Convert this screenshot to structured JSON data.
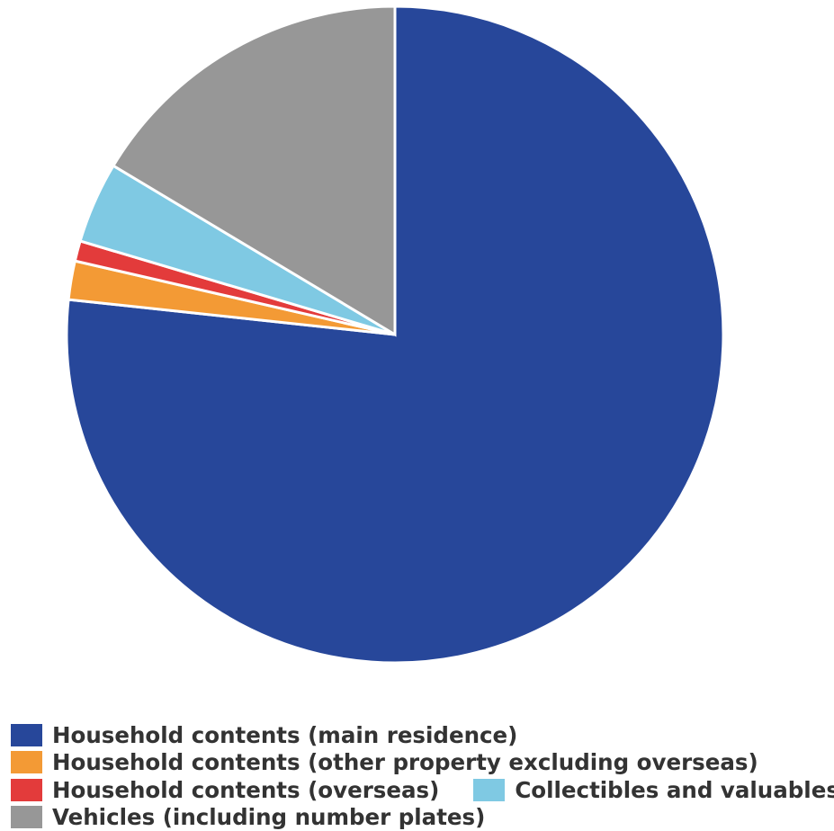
{
  "chart_data": {
    "type": "pie",
    "title": "",
    "start_angle_deg": 0,
    "direction": "clockwise",
    "series": [
      {
        "name": "Household contents (main residence)",
        "value": 76.7,
        "color": "#27479a"
      },
      {
        "name": "Household contents (other property excluding overseas)",
        "value": 1.9,
        "color": "#f39a35"
      },
      {
        "name": "Household contents (overseas)",
        "value": 1.0,
        "color": "#e33b3b"
      },
      {
        "name": "Collectibles and valuables",
        "value": 4.0,
        "color": "#7fc9e3"
      },
      {
        "name": "Vehicles (including number plates)",
        "value": 16.4,
        "color": "#979797"
      }
    ],
    "legend": {
      "position": "bottom-left",
      "rows": [
        [
          0
        ],
        [
          1
        ],
        [
          2,
          3
        ],
        [
          4
        ]
      ]
    }
  }
}
